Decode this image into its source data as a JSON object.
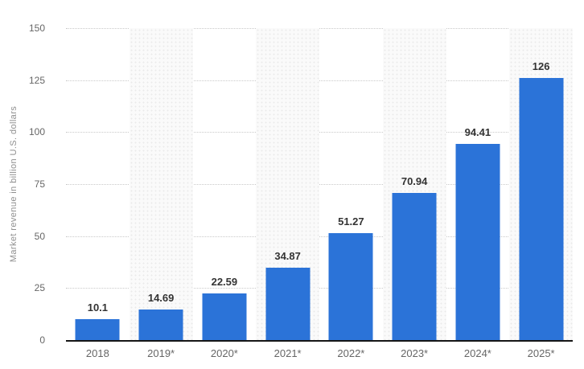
{
  "chart_data": {
    "type": "bar",
    "title": "",
    "xlabel": "",
    "ylabel": "Market revenue in billion U.S. dollars",
    "categories": [
      "2018",
      "2019*",
      "2020*",
      "2021*",
      "2022*",
      "2023*",
      "2024*",
      "2025*"
    ],
    "values": [
      10.1,
      14.69,
      22.59,
      34.87,
      51.27,
      70.94,
      94.41,
      126
    ],
    "value_labels": [
      "10.1",
      "14.69",
      "22.59",
      "34.87",
      "51.27",
      "70.94",
      "94.41",
      "126"
    ],
    "ylim": [
      0,
      150
    ],
    "yticks": [
      150,
      125,
      100,
      75,
      50,
      25,
      0
    ],
    "grid": "horizontal dotted lines at every 25 units",
    "legend_position": "none",
    "background_stripes": "alternate category columns shaded with light dotted pattern (2019*, 2021*, 2023*, 2025*)",
    "colors": {
      "bar": "#2B73D8",
      "value_label": "#333333",
      "tick_label": "#666666",
      "axis_line": "#161616",
      "gridline": "#c9c9c9",
      "stripe_bg": "#fafafa",
      "ylabel": "#8f8f8f"
    }
  }
}
